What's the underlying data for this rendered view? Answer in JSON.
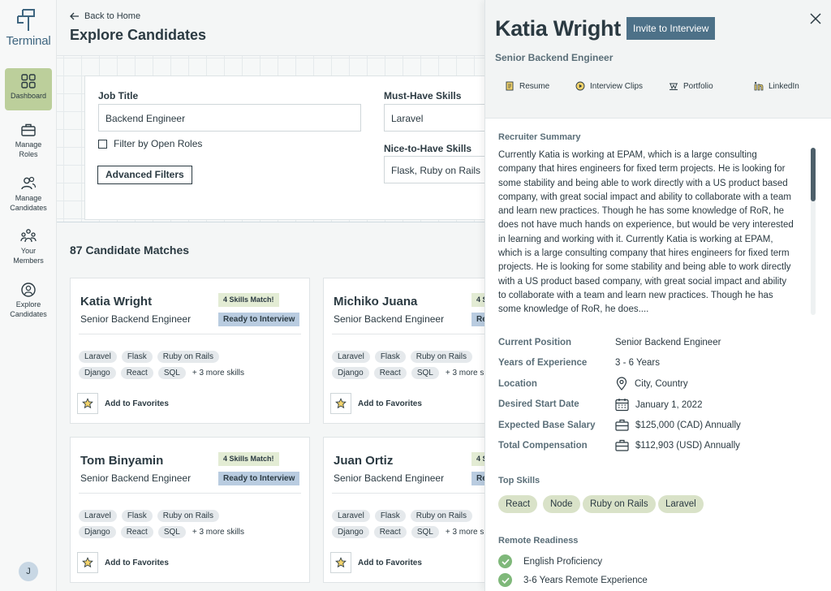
{
  "sidebar": {
    "logo_text": "Terminal",
    "items": [
      {
        "label": "Dashboard",
        "icon": "grid-icon",
        "active": true
      },
      {
        "label": "Manage Roles",
        "icon": "briefcase-icon"
      },
      {
        "label": "Manage Candidates",
        "icon": "people-icon"
      },
      {
        "label": "Your Members",
        "icon": "members-icon"
      },
      {
        "label": "Explore Candidates",
        "icon": "search-person-icon"
      }
    ],
    "avatar_initial": "J"
  },
  "header": {
    "back_label": "Back to Home",
    "title": "Explore Candidates"
  },
  "filters": {
    "job_title_label": "Job Title",
    "job_title_value": "Backend Engineer",
    "open_roles_label": "Filter by Open Roles",
    "advanced_label": "Advanced Filters",
    "must_have_label": "Must-Have Skills",
    "must_have_value": "Laravel",
    "nice_to_have_label": "Nice-to-Have Skills",
    "nice_to_have_value": "Flask, Ruby on Rails"
  },
  "results": {
    "count_title": "87 Candidate Matches",
    "cards": [
      {
        "name": "Katia Wright",
        "role": "Senior Backend Engineer",
        "match": "4 Skills Match!",
        "status": "Ready to Interview",
        "skills_row1": [
          "Laravel",
          "Flask",
          "Ruby on Rails"
        ],
        "skills_row2": [
          "Django",
          "React",
          "SQL"
        ],
        "more": "+ 3 more skills",
        "fav": "Add to Favorites"
      },
      {
        "name": "Michiko Juana",
        "role": "Senior Backend Engineer",
        "match": "4 S",
        "status": "Re",
        "skills_row1": [
          "Laravel",
          "Flask",
          "Ruby on Rails"
        ],
        "skills_row2": [
          "Django",
          "React",
          "SQL"
        ],
        "more": "+ 3 more s",
        "fav": "Add to Favorites"
      },
      {
        "name": "Tom Binyamin",
        "role": "Senior Backend Engineer",
        "match": "4 Skills Match!",
        "status": "Ready to Interview",
        "skills_row1": [
          "Laravel",
          "Flask",
          "Ruby on Rails"
        ],
        "skills_row2": [
          "Django",
          "React",
          "SQL"
        ],
        "more": "+ 3 more skills",
        "fav": "Add to Favorites"
      },
      {
        "name": "Juan Ortiz",
        "role": "Senior Backend Engineer",
        "match": "4 S",
        "status": "Re",
        "skills_row1": [
          "Laravel",
          "Flask",
          "Ruby on Rails"
        ],
        "skills_row2": [
          "Django",
          "React",
          "SQL"
        ],
        "more": "+ 3 more s",
        "fav": "Add to Favorites"
      }
    ]
  },
  "panel": {
    "name": "Katia Wright",
    "invite_label": "Invite to Interview",
    "role": "Senior Backend Engineer",
    "tabs": [
      {
        "label": "Resume",
        "icon": "resume-icon"
      },
      {
        "label": "Interview Clips",
        "icon": "play-icon"
      },
      {
        "label": "Portfolio",
        "icon": "portfolio-icon"
      },
      {
        "label": "LinkedIn",
        "icon": "linkedin-icon"
      }
    ],
    "summary_title": "Recruiter Summary",
    "summary_text": "Currently Katia is working at EPAM, which is a large consulting company that hires engineers for fixed term projects. He is looking for some stability and being able to work directly with a US product based company, with great social impact and ability to collaborate with a team and learn new practices. Though he has some knowledge of RoR, he does not have much hands on experience, but would be very interested in learning and working with it. Currently Katia is working at EPAM, which is a large consulting company that hires engineers for fixed term projects. He is looking for some stability and being able to work directly with a US product based company, with great social impact and ability to collaborate with a team and learn new practices. Though he has some knowledge of RoR, he does....",
    "info": [
      {
        "label": "Current Position",
        "value": "Senior Backend Engineer"
      },
      {
        "label": "Years of Experience",
        "value": "3 - 6 Years"
      },
      {
        "label": "Location",
        "value": "City, Country",
        "icon": "location-pin-icon"
      },
      {
        "label": "Desired Start Date",
        "value": "January 1, 2022",
        "icon": "calendar-icon"
      },
      {
        "label": "Expected Base Salary",
        "value": "$125,000 (CAD) Annually",
        "icon": "briefcase-icon"
      },
      {
        "label": "Total Compensation",
        "value": "$112,903 (USD) Annually",
        "icon": "briefcase-icon"
      }
    ],
    "top_skills_title": "Top Skills",
    "top_skills": [
      "React",
      "Node",
      "Ruby on Rails",
      "Laravel"
    ],
    "remote_title": "Remote Readiness",
    "remote_items": [
      "English Proficiency",
      "3-6 Years Remote Experience"
    ]
  },
  "colors": {
    "accent_blue": "#4d7188",
    "sidebar_active": "#bccf9b",
    "skill_pill": "#d9e2c8",
    "check_green": "#7fb87a"
  }
}
